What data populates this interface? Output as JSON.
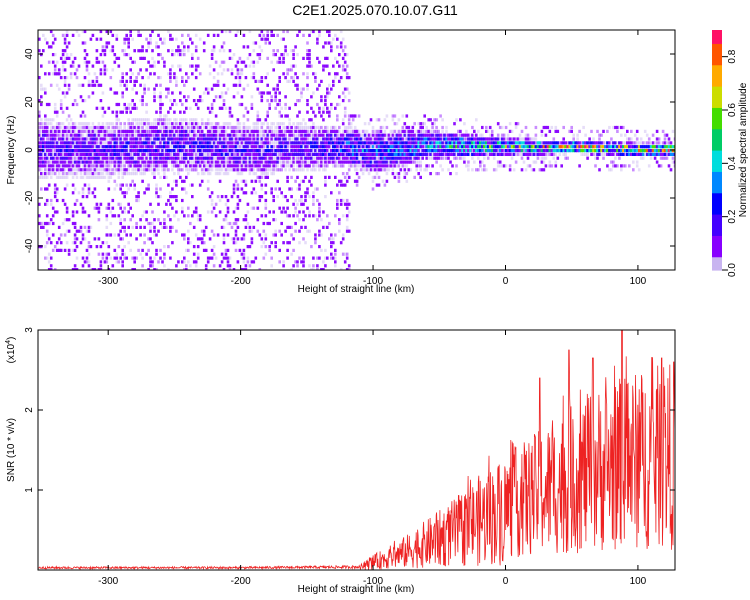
{
  "page_title": "C2E1.2025.070.10.07.G11",
  "colors": {
    "snr_line": "#ee2222",
    "colormap": [
      "#c8b4f0",
      "#8800ff",
      "#4400ff",
      "#0000ff",
      "#0088ff",
      "#00dddd",
      "#00cc66",
      "#44dd00",
      "#ccdd00",
      "#ffaa00",
      "#ff5500",
      "#ff1166"
    ]
  },
  "chart_data": [
    {
      "type": "heatmap",
      "xlabel": "Height of straight line (km)",
      "ylabel": "Frequency (Hz)",
      "xlim": [
        -353,
        128
      ],
      "ylim": [
        -50,
        50
      ],
      "xticks": [
        -300,
        -200,
        -100,
        0,
        100
      ],
      "yticks": [
        -40,
        -20,
        0,
        20,
        40
      ],
      "grid": false,
      "colorbar": {
        "label": "Normalized spectral amplitude",
        "ticks": [
          "0.0",
          "0.2",
          "0.4",
          "0.6",
          "0.8"
        ],
        "tick_values": [
          0.0,
          0.2,
          0.4,
          0.6,
          0.8
        ],
        "range": [
          0,
          0.9
        ]
      },
      "band_profile": [
        {
          "x": -350,
          "center": 0,
          "halfwidth": 14,
          "peak": 0.18
        },
        {
          "x": -300,
          "center": 0,
          "halfwidth": 13,
          "peak": 0.2
        },
        {
          "x": -260,
          "center": 2,
          "halfwidth": 13,
          "peak": 0.22
        },
        {
          "x": -200,
          "center": 0,
          "halfwidth": 12,
          "peak": 0.2
        },
        {
          "x": -150,
          "center": 1,
          "halfwidth": 11,
          "peak": 0.2
        },
        {
          "x": -120,
          "center": 1,
          "halfwidth": 9,
          "peak": 0.3
        },
        {
          "x": -100,
          "center": -1,
          "halfwidth": 10,
          "peak": 0.35
        },
        {
          "x": -60,
          "center": 2,
          "halfwidth": 7,
          "peak": 0.4
        },
        {
          "x": 0,
          "center": 1,
          "halfwidth": 4,
          "peak": 0.6
        },
        {
          "x": 50,
          "center": 1,
          "halfwidth": 3,
          "peak": 0.8
        },
        {
          "x": 100,
          "center": 0,
          "halfwidth": 3,
          "peak": 0.85
        },
        {
          "x": 128,
          "center": 0,
          "halfwidth": 3,
          "peak": 0.8
        }
      ]
    },
    {
      "type": "line",
      "xlabel": "Height of straight line (km)",
      "ylabel": "SNR (10 * v/v)",
      "y_multiplier": "(x10",
      "y_multiplier_exp": "4",
      "y_multiplier_close": ")",
      "xlim": [
        -353,
        128
      ],
      "ylim": [
        0,
        3
      ],
      "xticks": [
        -300,
        -200,
        -100,
        0,
        100
      ],
      "yticks": [
        1,
        2,
        3
      ],
      "grid": false,
      "envelope": [
        {
          "x": -353,
          "y": 0.03
        },
        {
          "x": -200,
          "y": 0.03
        },
        {
          "x": -110,
          "y": 0.04
        },
        {
          "x": -100,
          "y": 0.15
        },
        {
          "x": -80,
          "y": 0.3
        },
        {
          "x": -60,
          "y": 0.5
        },
        {
          "x": -40,
          "y": 0.7
        },
        {
          "x": -20,
          "y": 0.95
        },
        {
          "x": 0,
          "y": 1.15
        },
        {
          "x": 20,
          "y": 1.35
        },
        {
          "x": 40,
          "y": 1.55
        },
        {
          "x": 60,
          "y": 1.75
        },
        {
          "x": 80,
          "y": 1.9
        },
        {
          "x": 100,
          "y": 2.0
        },
        {
          "x": 128,
          "y": 2.1
        }
      ],
      "peaks": [
        {
          "x": 26,
          "y": 2.4
        },
        {
          "x": 48,
          "y": 2.75
        },
        {
          "x": 66,
          "y": 2.65
        },
        {
          "x": 88,
          "y": 3.0
        },
        {
          "x": 118,
          "y": 2.65
        },
        {
          "x": 127,
          "y": 2.6
        }
      ]
    }
  ]
}
